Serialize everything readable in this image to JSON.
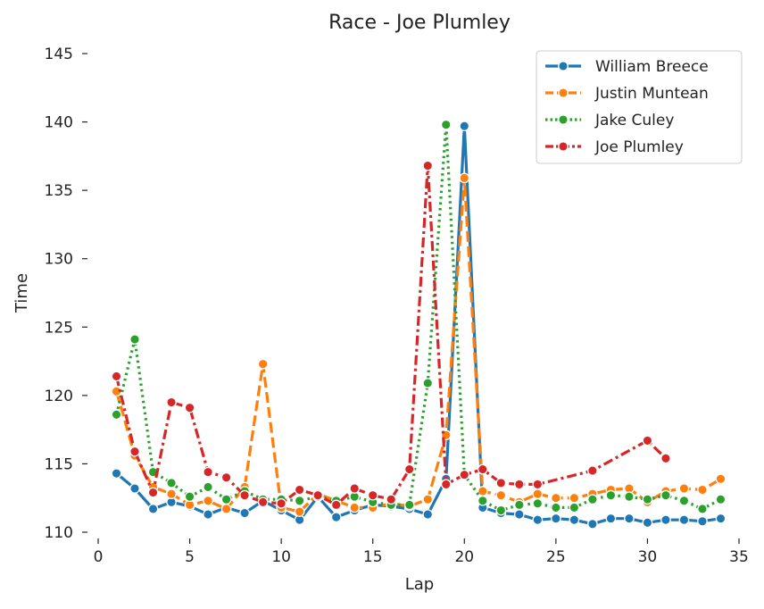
{
  "chart_data": {
    "type": "line",
    "title": "Race - Joe Plumley",
    "xlabel": "Lap",
    "ylabel": "Time",
    "xlim": [
      0,
      35
    ],
    "ylim": [
      110,
      145
    ],
    "xticks": [
      0,
      5,
      10,
      15,
      20,
      25,
      30,
      35
    ],
    "yticks": [
      110,
      115,
      120,
      125,
      130,
      135,
      140,
      145
    ],
    "grid": false,
    "legend_position": "top-right",
    "series": [
      {
        "name": "William Breece",
        "color": "#1f77b4",
        "dash": "solid",
        "x": [
          1,
          2,
          3,
          4,
          5,
          6,
          7,
          8,
          9,
          10,
          11,
          12,
          13,
          14,
          15,
          16,
          17,
          18,
          19,
          20,
          21,
          22,
          23,
          24,
          25,
          26,
          27,
          28,
          29,
          30,
          31,
          32,
          33,
          34
        ],
        "y": [
          114.3,
          113.2,
          111.7,
          112.2,
          111.9,
          111.3,
          111.8,
          111.4,
          112.3,
          111.6,
          110.9,
          112.6,
          111.1,
          111.6,
          112.0,
          111.9,
          111.7,
          111.3,
          113.9,
          139.7,
          111.8,
          111.4,
          111.3,
          110.9,
          111.0,
          110.9,
          110.6,
          111.0,
          111.0,
          110.7,
          110.9,
          110.9,
          110.8,
          111.0
        ]
      },
      {
        "name": "Justin Muntean",
        "color": "#ff7f0e",
        "dash": "dashed",
        "x": [
          1,
          2,
          3,
          4,
          5,
          6,
          7,
          8,
          9,
          10,
          11,
          12,
          13,
          14,
          15,
          16,
          17,
          18,
          19,
          20,
          21,
          22,
          23,
          24,
          25,
          26,
          27,
          28,
          29,
          30,
          31,
          32,
          33,
          34
        ],
        "y": [
          120.3,
          115.6,
          113.3,
          112.8,
          112.0,
          112.3,
          111.7,
          113.3,
          122.3,
          111.8,
          111.5,
          112.8,
          112.3,
          111.8,
          111.8,
          112.1,
          111.9,
          112.4,
          117.1,
          135.9,
          113.0,
          112.7,
          112.2,
          112.8,
          112.5,
          112.5,
          112.8,
          113.1,
          113.2,
          112.2,
          113.0,
          113.2,
          113.1,
          113.9
        ]
      },
      {
        "name": "Jake Culey",
        "color": "#2ca02c",
        "dash": "dotted",
        "x": [
          1,
          2,
          3,
          4,
          5,
          6,
          7,
          8,
          9,
          10,
          11,
          12,
          13,
          14,
          15,
          16,
          17,
          18,
          19,
          20,
          21,
          22,
          23,
          24,
          25,
          26,
          27,
          28,
          29,
          30,
          31,
          32,
          33,
          34
        ],
        "y": [
          118.6,
          124.1,
          114.4,
          113.6,
          112.6,
          113.3,
          112.4,
          113.0,
          112.4,
          112.4,
          112.3,
          112.6,
          112.3,
          112.6,
          112.2,
          112.0,
          112.0,
          120.9,
          139.8,
          114.2,
          112.3,
          111.6,
          112.0,
          112.1,
          111.8,
          111.8,
          112.4,
          112.7,
          112.6,
          112.4,
          112.7,
          112.3,
          111.7,
          112.4
        ]
      },
      {
        "name": "Joe Plumley",
        "color": "#d62728",
        "dash": "dashdot",
        "x": [
          1,
          2,
          3,
          4,
          5,
          6,
          7,
          8,
          9,
          10,
          11,
          12,
          13,
          14,
          15,
          16,
          17,
          18,
          19,
          20,
          21,
          22,
          23,
          24,
          27,
          30,
          31
        ],
        "y": [
          121.4,
          115.9,
          112.9,
          119.5,
          119.1,
          114.4,
          114.0,
          112.7,
          112.2,
          112.1,
          113.1,
          112.7,
          112.0,
          113.2,
          112.7,
          112.4,
          114.6,
          136.8,
          113.5,
          114.2,
          114.6,
          113.6,
          113.5,
          113.5,
          114.5,
          116.7,
          115.4
        ]
      }
    ]
  }
}
